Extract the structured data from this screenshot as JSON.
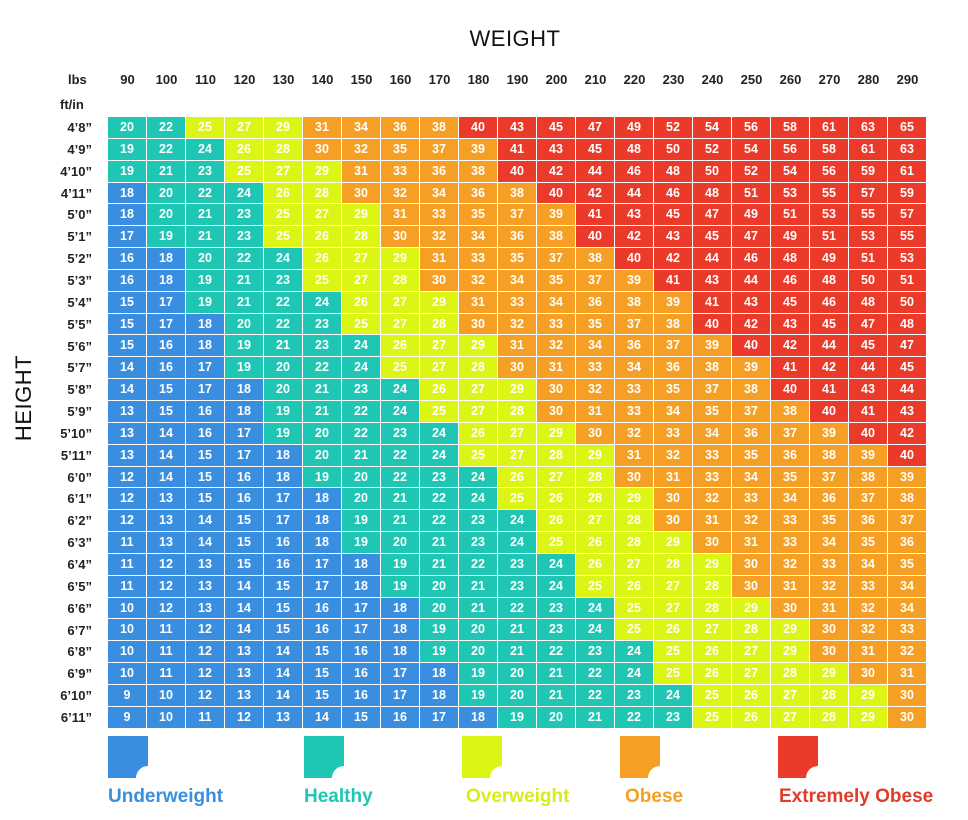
{
  "chart_data": {
    "type": "heatmap",
    "title": "WEIGHT",
    "xlabel": "WEIGHT",
    "ylabel": "HEIGHT",
    "x_unit_label": "lbs",
    "y_unit_label": "ft/in",
    "weights": [
      "90",
      "100",
      "110",
      "120",
      "130",
      "140",
      "150",
      "160",
      "170",
      "180",
      "190",
      "200",
      "210",
      "220",
      "230",
      "240",
      "250",
      "260",
      "270",
      "280",
      "290"
    ],
    "heights": [
      "4’8”",
      "4’9”",
      "4’10”",
      "4’11”",
      "5’0”",
      "5’1”",
      "5’2”",
      "5’3”",
      "5’4”",
      "5’5”",
      "5’6”",
      "5’7”",
      "5’8”",
      "5’9”",
      "5’10”",
      "5’11”",
      "6’0”",
      "6’1”",
      "6’2”",
      "6’3”",
      "6’4”",
      "6’5”",
      "6’6”",
      "6’7”",
      "6’8”",
      "6’9”",
      "6’10”",
      "6’11”"
    ],
    "values": [
      [
        20,
        22,
        25,
        27,
        29,
        31,
        34,
        36,
        38,
        40,
        43,
        45,
        47,
        49,
        52,
        54,
        56,
        58,
        61,
        63,
        65
      ],
      [
        19,
        22,
        24,
        26,
        28,
        30,
        32,
        35,
        37,
        39,
        41,
        43,
        45,
        48,
        50,
        52,
        54,
        56,
        58,
        61,
        63
      ],
      [
        19,
        21,
        23,
        25,
        27,
        29,
        31,
        33,
        36,
        38,
        40,
        42,
        44,
        46,
        48,
        50,
        52,
        54,
        56,
        59,
        61
      ],
      [
        18,
        20,
        22,
        24,
        26,
        28,
        30,
        32,
        34,
        36,
        38,
        40,
        42,
        44,
        46,
        48,
        51,
        53,
        55,
        57,
        59
      ],
      [
        18,
        20,
        21,
        23,
        25,
        27,
        29,
        31,
        33,
        35,
        37,
        39,
        41,
        43,
        45,
        47,
        49,
        51,
        53,
        55,
        57
      ],
      [
        17,
        19,
        21,
        23,
        25,
        26,
        28,
        30,
        32,
        34,
        36,
        38,
        40,
        42,
        43,
        45,
        47,
        49,
        51,
        53,
        55
      ],
      [
        16,
        18,
        20,
        22,
        24,
        26,
        27,
        29,
        31,
        33,
        35,
        37,
        38,
        40,
        42,
        44,
        46,
        48,
        49,
        51,
        53
      ],
      [
        16,
        18,
        19,
        21,
        23,
        25,
        27,
        28,
        30,
        32,
        34,
        35,
        37,
        39,
        41,
        43,
        44,
        46,
        48,
        50,
        51
      ],
      [
        15,
        17,
        19,
        21,
        22,
        24,
        26,
        27,
        29,
        31,
        33,
        34,
        36,
        38,
        39,
        41,
        43,
        45,
        46,
        48,
        50
      ],
      [
        15,
        17,
        18,
        20,
        22,
        23,
        25,
        27,
        28,
        30,
        32,
        33,
        35,
        37,
        38,
        40,
        42,
        43,
        45,
        47,
        48
      ],
      [
        15,
        16,
        18,
        19,
        21,
        23,
        24,
        26,
        27,
        29,
        31,
        32,
        34,
        36,
        37,
        39,
        40,
        42,
        44,
        45,
        47
      ],
      [
        14,
        16,
        17,
        19,
        20,
        22,
        24,
        25,
        27,
        28,
        30,
        31,
        33,
        34,
        36,
        38,
        39,
        41,
        42,
        44,
        45
      ],
      [
        14,
        15,
        17,
        18,
        20,
        21,
        23,
        24,
        26,
        27,
        29,
        30,
        32,
        33,
        35,
        37,
        38,
        40,
        41,
        43,
        44
      ],
      [
        13,
        15,
        16,
        18,
        19,
        21,
        22,
        24,
        25,
        27,
        28,
        30,
        31,
        33,
        34,
        35,
        37,
        38,
        40,
        41,
        43
      ],
      [
        13,
        14,
        16,
        17,
        19,
        20,
        22,
        23,
        24,
        26,
        27,
        29,
        30,
        32,
        33,
        34,
        36,
        37,
        39,
        40,
        42
      ],
      [
        13,
        14,
        15,
        17,
        18,
        20,
        21,
        22,
        24,
        25,
        27,
        28,
        29,
        31,
        32,
        33,
        35,
        36,
        38,
        39,
        40
      ],
      [
        12,
        14,
        15,
        16,
        18,
        19,
        20,
        22,
        23,
        24,
        26,
        27,
        28,
        30,
        31,
        33,
        34,
        35,
        37,
        38,
        39
      ],
      [
        12,
        13,
        15,
        16,
        17,
        18,
        20,
        21,
        22,
        24,
        25,
        26,
        28,
        29,
        30,
        32,
        33,
        34,
        36,
        37,
        38
      ],
      [
        12,
        13,
        14,
        15,
        17,
        18,
        19,
        21,
        22,
        23,
        24,
        26,
        27,
        28,
        30,
        31,
        32,
        33,
        35,
        36,
        37
      ],
      [
        11,
        13,
        14,
        15,
        16,
        18,
        19,
        20,
        21,
        23,
        24,
        25,
        26,
        28,
        29,
        30,
        31,
        33,
        34,
        35,
        36
      ],
      [
        11,
        12,
        13,
        15,
        16,
        17,
        18,
        19,
        21,
        22,
        23,
        24,
        26,
        27,
        28,
        29,
        30,
        32,
        33,
        34,
        35
      ],
      [
        11,
        12,
        13,
        14,
        15,
        17,
        18,
        19,
        20,
        21,
        23,
        24,
        25,
        26,
        27,
        28,
        30,
        31,
        32,
        33,
        34
      ],
      [
        10,
        12,
        13,
        14,
        15,
        16,
        17,
        18,
        20,
        21,
        22,
        23,
        24,
        25,
        27,
        28,
        29,
        30,
        31,
        32,
        34
      ],
      [
        10,
        11,
        12,
        14,
        15,
        16,
        17,
        18,
        19,
        20,
        21,
        23,
        24,
        25,
        26,
        27,
        28,
        29,
        30,
        32,
        33
      ],
      [
        10,
        11,
        12,
        13,
        14,
        15,
        16,
        18,
        19,
        20,
        21,
        22,
        23,
        24,
        25,
        26,
        27,
        29,
        30,
        31,
        32
      ],
      [
        10,
        11,
        12,
        13,
        14,
        15,
        16,
        17,
        18,
        19,
        20,
        21,
        22,
        24,
        25,
        26,
        27,
        28,
        29,
        30,
        31
      ],
      [
        9,
        10,
        12,
        13,
        14,
        15,
        16,
        17,
        18,
        19,
        20,
        21,
        22,
        23,
        24,
        25,
        26,
        27,
        28,
        29,
        30
      ],
      [
        9,
        10,
        11,
        12,
        13,
        14,
        15,
        16,
        17,
        18,
        19,
        20,
        21,
        22,
        23,
        25,
        26,
        27,
        28,
        29,
        30
      ]
    ],
    "categories": [
      {
        "name": "Underweight",
        "color": "#3a8ee0",
        "min": 0,
        "max": 18
      },
      {
        "name": "Healthy",
        "color": "#1fc6b4",
        "min": 19,
        "max": 24
      },
      {
        "name": "Overweight",
        "color": "#dcf514",
        "min": 25,
        "max": 29
      },
      {
        "name": "Obese",
        "color": "#f5a024",
        "min": 30,
        "max": 39
      },
      {
        "name": "Extremely Obese",
        "color": "#ec3a2a",
        "min": 40,
        "max": 100
      }
    ],
    "label_colors": {
      "Underweight": "#3a8ee0",
      "Healthy": "#1fc6b4",
      "Overweight": "#d6ee14",
      "Obese": "#f5a024",
      "Extremely Obese": "#e03c2a"
    },
    "legend_position": "bottom"
  }
}
